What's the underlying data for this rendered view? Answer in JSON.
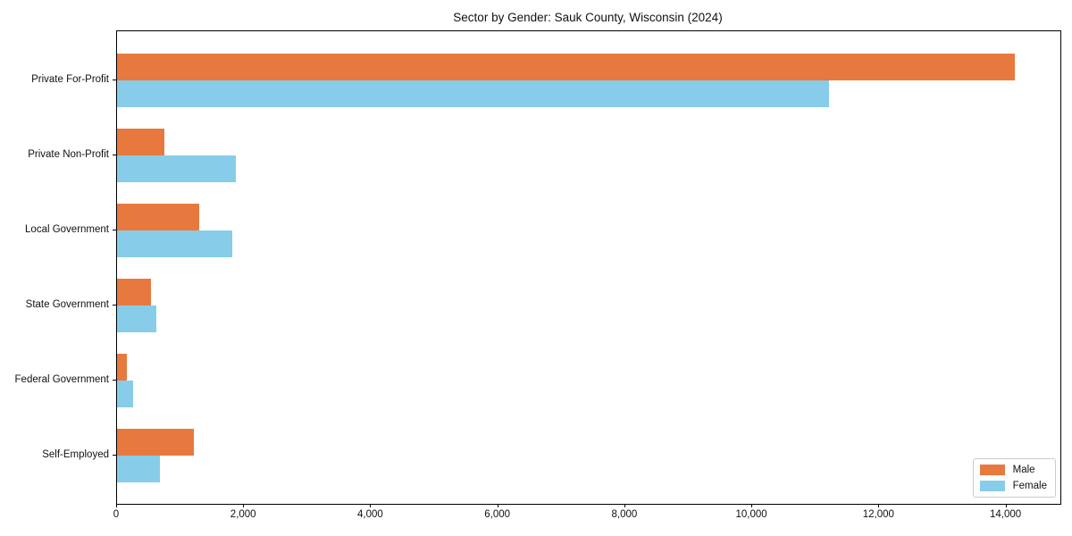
{
  "title": "Sector by Gender: Sauk County, Wisconsin (2024)",
  "chart_data": {
    "type": "bar",
    "orientation": "horizontal",
    "title": "Sector by Gender: Sauk County, Wisconsin (2024)",
    "categories": [
      "Private For-Profit",
      "Private Non-Profit",
      "Local Government",
      "State Government",
      "Federal Government",
      "Self-Employed"
    ],
    "series": [
      {
        "name": "Male",
        "color": "#e8793e",
        "values": [
          14130,
          745,
          1290,
          535,
          155,
          1210
        ]
      },
      {
        "name": "Female",
        "color": "#87cdea",
        "values": [
          11210,
          1870,
          1815,
          620,
          250,
          675
        ]
      }
    ],
    "xlabel": "",
    "ylabel": "",
    "xlim": [
      0,
      14850
    ],
    "xticks": [
      0,
      2000,
      4000,
      6000,
      8000,
      10000,
      12000,
      14000
    ],
    "xtick_labels": [
      "0",
      "2,000",
      "4,000",
      "6,000",
      "8,000",
      "10,000",
      "12,000",
      "14,000"
    ],
    "grid": false,
    "legend": {
      "position": "lower right",
      "entries": [
        "Male",
        "Female"
      ]
    }
  }
}
